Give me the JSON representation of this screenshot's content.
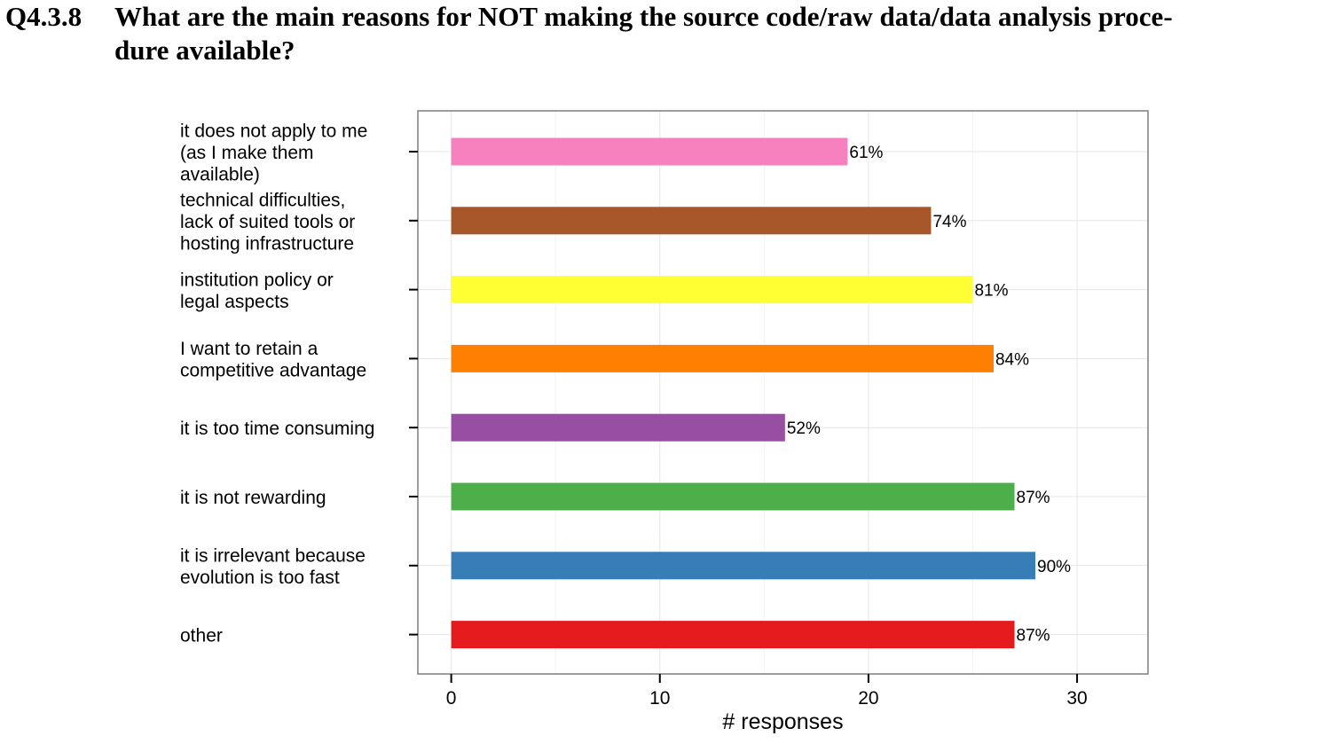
{
  "question": {
    "number": "Q4.3.8",
    "line1": "What are the main reasons for NOT making the source code/raw data/data analysis proce-",
    "line2": "dure available?"
  },
  "chart_data": {
    "type": "bar",
    "orientation": "horizontal",
    "title": "",
    "xlabel": "# responses",
    "ylabel": "",
    "xlim": [
      -1.6,
      33.4
    ],
    "x_ticks": [
      0,
      10,
      20,
      30
    ],
    "grid": true,
    "legend": "none",
    "categories": [
      "it does not apply to me (as I make them available)",
      "technical difficulties, lack of suited tools or hosting infrastructure",
      "institution policy or legal aspects",
      "I want to retain a competitive advantage",
      "it is too time consuming",
      "it is not rewarding",
      "it is irrelevant because evolution is too fast",
      "other"
    ],
    "category_lines": [
      [
        "it does not apply to me",
        "(as I make them",
        "available)"
      ],
      [
        "technical difficulties,",
        "lack of suited tools or",
        "hosting infrastructure"
      ],
      [
        "institution policy or",
        "legal aspects"
      ],
      [
        "I want to retain a",
        "competitive advantage"
      ],
      [
        "it is too time consuming"
      ],
      [
        "it is not rewarding"
      ],
      [
        "it is irrelevant because",
        "evolution is too fast"
      ],
      [
        "other"
      ]
    ],
    "values": [
      19,
      23,
      25,
      26,
      16,
      27,
      28,
      27
    ],
    "labels": [
      "61%",
      "74%",
      "81%",
      "84%",
      "52%",
      "87%",
      "90%",
      "87%"
    ],
    "colors": [
      "#f781bf",
      "#a65628",
      "#ffff33",
      "#ff7f00",
      "#984ea3",
      "#4daf4a",
      "#377eb8",
      "#e41a1c"
    ]
  }
}
